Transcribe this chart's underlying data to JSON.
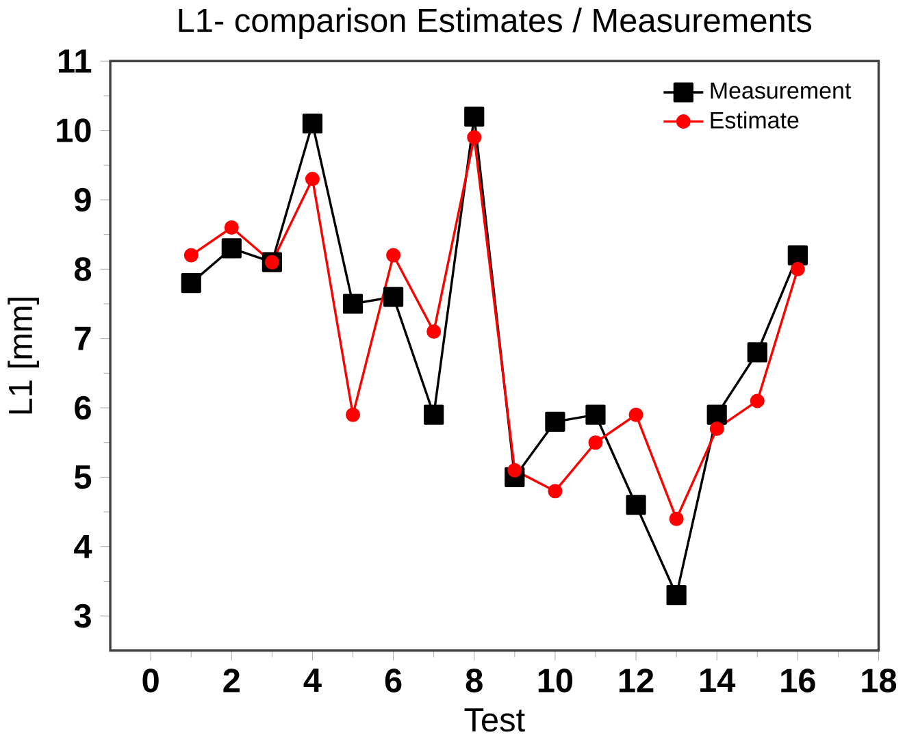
{
  "chart_data": {
    "type": "line",
    "title": "L1- comparison Estimates / Measurements",
    "xlabel": "Test",
    "ylabel": "L1 [mm]",
    "x": [
      1,
      2,
      3,
      4,
      5,
      6,
      7,
      8,
      9,
      10,
      11,
      12,
      13,
      14,
      15,
      16
    ],
    "series": [
      {
        "name": "Measurement",
        "color": "#000000",
        "marker": "square",
        "values": [
          7.8,
          8.3,
          8.1,
          10.1,
          7.5,
          7.6,
          5.9,
          10.2,
          5.0,
          5.8,
          5.9,
          4.6,
          3.3,
          5.9,
          6.8,
          8.2
        ]
      },
      {
        "name": "Estimate",
        "color": "#ff0000",
        "marker": "circle",
        "values": [
          8.2,
          8.6,
          8.1,
          9.3,
          5.9,
          8.2,
          7.1,
          9.9,
          5.1,
          4.8,
          5.5,
          5.9,
          4.4,
          5.7,
          6.1,
          8.0
        ]
      }
    ],
    "xlim": [
      -1,
      18
    ],
    "ylim": [
      2.5,
      11
    ],
    "xticks": [
      0,
      2,
      4,
      6,
      8,
      10,
      12,
      14,
      16,
      18
    ],
    "yticks": [
      3,
      4,
      5,
      6,
      7,
      8,
      9,
      10,
      11
    ],
    "grid": false,
    "legend": "top right",
    "line_style": "solid"
  }
}
